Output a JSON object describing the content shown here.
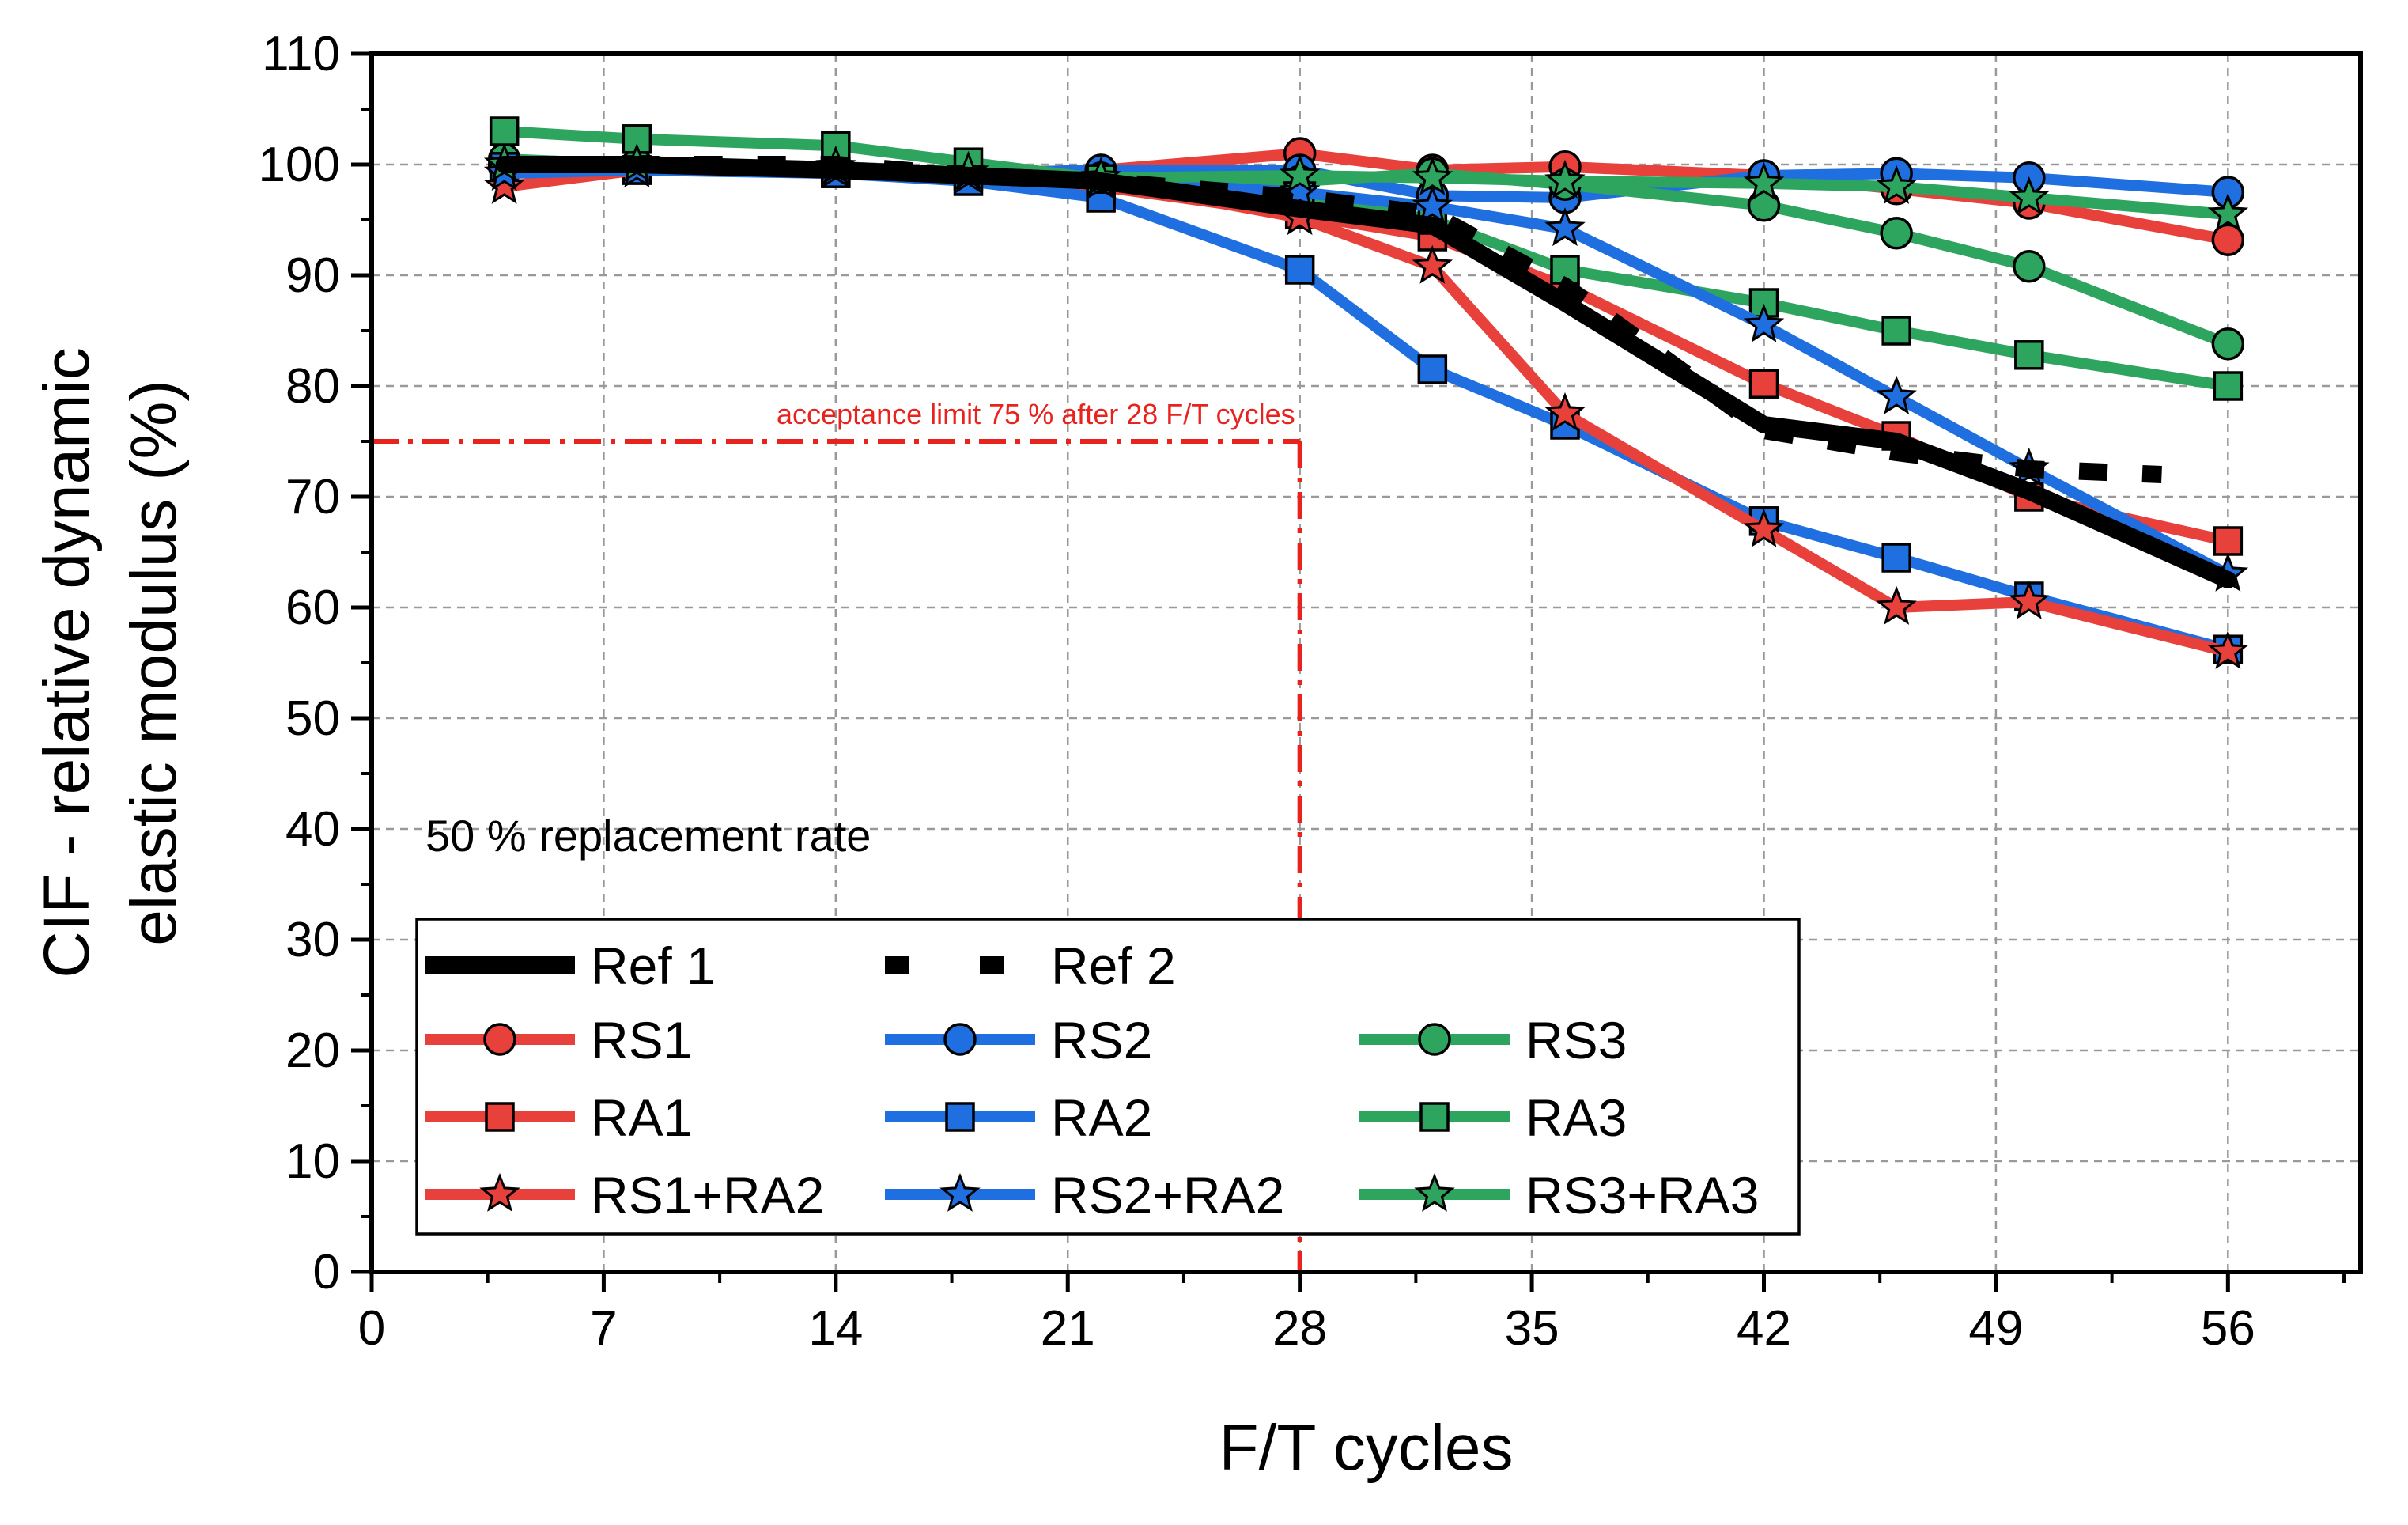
{
  "chart_data": {
    "type": "line",
    "title": "",
    "xlabel": "F/T cycles",
    "ylabel_line1": "CIF - relative dynamic",
    "ylabel_line2": "elastic modulus (%)",
    "xlim": [
      0,
      60
    ],
    "ylim": [
      0,
      110
    ],
    "xticks": [
      0,
      7,
      14,
      21,
      28,
      35,
      42,
      49,
      56
    ],
    "yticks": [
      0,
      10,
      20,
      30,
      40,
      50,
      60,
      70,
      80,
      90,
      100,
      110
    ],
    "grid": true,
    "annotation": "50 % replacement rate",
    "acceptance_limit": {
      "label": "acceptance limit 75 % after 28 F/T cycles",
      "y": 75,
      "x": 28
    },
    "colors": {
      "red": "#e8413c",
      "blue": "#1f6fe0",
      "green": "#2ea55e",
      "black": "#000000",
      "limit": "#e8231d"
    },
    "series": [
      {
        "name": "Ref 1",
        "color": "#000000",
        "style": "thick",
        "marker": "none",
        "x": [
          4,
          8,
          14,
          18,
          22,
          28,
          32,
          36,
          42,
          46,
          50,
          56
        ],
        "y": [
          100,
          100,
          99.5,
          99,
          98.5,
          96,
          94.5,
          87.5,
          76.5,
          75,
          70.5,
          62.5
        ]
      },
      {
        "name": "Ref 2",
        "color": "#000000",
        "style": "dashed",
        "marker": "none",
        "x": [
          4,
          8,
          14,
          18,
          22,
          28,
          32,
          36,
          42,
          46,
          50,
          54
        ],
        "y": [
          100,
          100,
          100,
          99,
          98.5,
          97,
          95.5,
          89,
          76,
          74,
          72.5,
          72
        ]
      },
      {
        "name": "RS1",
        "color": "#e8413c",
        "marker": "circle",
        "x": [
          4,
          8,
          14,
          18,
          22,
          28,
          32,
          36,
          42,
          46,
          50,
          56
        ],
        "y": [
          99.8,
          99.9,
          99.5,
          99.2,
          99.5,
          101,
          99.5,
          99.8,
          99,
          97.8,
          96.5,
          93.2
        ]
      },
      {
        "name": "RS2",
        "color": "#1f6fe0",
        "marker": "circle",
        "x": [
          4,
          8,
          14,
          18,
          22,
          28,
          32,
          36,
          42,
          46,
          50,
          56
        ],
        "y": [
          100,
          100,
          99.5,
          99.2,
          99.5,
          99.5,
          97.2,
          97,
          99,
          99.2,
          98.8,
          97.5
        ]
      },
      {
        "name": "RS3",
        "color": "#2ea55e",
        "marker": "circle",
        "x": [
          4,
          8,
          14,
          18,
          22,
          28,
          32,
          36,
          42,
          46,
          50,
          56
        ],
        "y": [
          100.5,
          100,
          99.8,
          99.3,
          98.8,
          98.5,
          99.2,
          98.2,
          96.3,
          93.8,
          90.8,
          83.8
        ]
      },
      {
        "name": "RA1",
        "color": "#e8413c",
        "marker": "square",
        "x": [
          4,
          8,
          14,
          18,
          22,
          28,
          32,
          36,
          42,
          46,
          50,
          56
        ],
        "y": [
          99.5,
          99.5,
          99.3,
          99,
          98,
          95.5,
          93.5,
          89,
          80.2,
          75.5,
          70,
          66
        ]
      },
      {
        "name": "RA2",
        "color": "#1f6fe0",
        "marker": "square",
        "x": [
          4,
          8,
          14,
          18,
          22,
          28,
          32,
          36,
          42,
          46,
          50,
          56
        ],
        "y": [
          99.8,
          99.5,
          99.2,
          98.5,
          97,
          90.5,
          81.5,
          76.5,
          67.8,
          64.5,
          61,
          56.2
        ]
      },
      {
        "name": "RA3",
        "color": "#2ea55e",
        "marker": "square",
        "x": [
          4,
          8,
          14,
          18,
          22,
          28,
          32,
          36,
          42,
          46,
          50,
          56
        ],
        "y": [
          103,
          102.3,
          101.7,
          100.2,
          98.7,
          97.2,
          95,
          90.5,
          87.5,
          85,
          82.8,
          80
        ]
      },
      {
        "name": "RS1+RA2",
        "color": "#e8413c",
        "marker": "star",
        "x": [
          4,
          8,
          14,
          18,
          22,
          28,
          32,
          36,
          42,
          46,
          50,
          56
        ],
        "y": [
          98,
          99.5,
          99.5,
          99,
          98.5,
          95.2,
          90.8,
          77.5,
          67,
          60,
          60.5,
          56
        ]
      },
      {
        "name": "RS2+RA2",
        "color": "#1f6fe0",
        "marker": "star",
        "x": [
          4,
          8,
          14,
          18,
          22,
          28,
          32,
          36,
          42,
          46,
          50,
          56
        ],
        "y": [
          99.2,
          99.5,
          99.5,
          99,
          98.5,
          97.5,
          96.2,
          94.2,
          85.5,
          79,
          72.5,
          63
        ]
      },
      {
        "name": "RS3+RA3",
        "color": "#2ea55e",
        "marker": "star",
        "x": [
          4,
          8,
          14,
          18,
          22,
          28,
          32,
          36,
          42,
          46,
          50,
          56
        ],
        "y": [
          100,
          100,
          99.8,
          99.3,
          98.8,
          99,
          98.8,
          98.5,
          98.3,
          98,
          97,
          95.5
        ]
      }
    ]
  }
}
